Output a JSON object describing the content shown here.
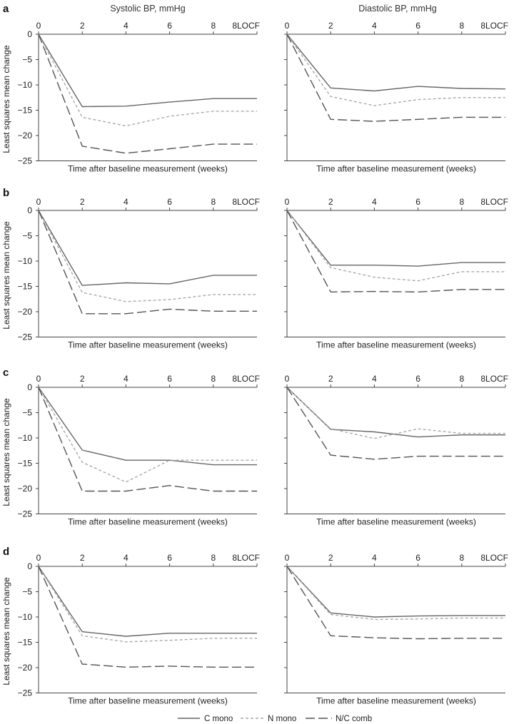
{
  "figure": {
    "col_titles": [
      "Systolic BP, mmHg",
      "Diastolic BP, mmHg"
    ],
    "row_labels": [
      "a",
      "b",
      "c",
      "d"
    ],
    "ylabel": "Least squares mean change",
    "xlabel": "Time after baseline measurement (weeks)",
    "x_tick_labels": [
      "0",
      "2",
      "4",
      "6",
      "8",
      "8LOCF"
    ],
    "y_tick_labels": [
      "0",
      "−5",
      "−10",
      "−15",
      "−20",
      "−25"
    ],
    "legend": [
      {
        "name": "C mono",
        "color": "#666666",
        "dash": "solid"
      },
      {
        "name": "N mono",
        "color": "#aaaaaa",
        "dash": "short"
      },
      {
        "name": "N/C comb",
        "color": "#555555",
        "dash": "long"
      }
    ]
  },
  "chart_data": [
    {
      "type": "line",
      "panel": "a",
      "title": "Systolic BP, mmHg",
      "xlabel": "Time after baseline measurement (weeks)",
      "ylabel": "Least squares mean change",
      "ylim": [
        -25,
        0
      ],
      "categories": [
        "0",
        "2",
        "4",
        "6",
        "8",
        "8LOCF"
      ],
      "series": [
        {
          "name": "C mono",
          "values": [
            0,
            -14.3,
            -14.2,
            -13.4,
            -12.7,
            -12.7
          ]
        },
        {
          "name": "N mono",
          "values": [
            0,
            -16.4,
            -18.1,
            -16.2,
            -15.2,
            -15.2
          ]
        },
        {
          "name": "N/C comb",
          "values": [
            0,
            -22.1,
            -23.5,
            -22.6,
            -21.7,
            -21.7
          ]
        }
      ]
    },
    {
      "type": "line",
      "panel": "a",
      "title": "Diastolic BP, mmHg",
      "xlabel": "Time after baseline measurement (weeks)",
      "ylim": [
        -25,
        0
      ],
      "categories": [
        "0",
        "2",
        "4",
        "6",
        "8",
        "8LOCF"
      ],
      "series": [
        {
          "name": "C mono",
          "values": [
            0,
            -10.6,
            -11.2,
            -10.3,
            -10.7,
            -10.8
          ]
        },
        {
          "name": "N mono",
          "values": [
            0,
            -12.3,
            -14.1,
            -12.9,
            -12.5,
            -12.5
          ]
        },
        {
          "name": "N/C comb",
          "values": [
            0,
            -16.8,
            -17.2,
            -16.8,
            -16.4,
            -16.4
          ]
        }
      ]
    },
    {
      "type": "line",
      "panel": "b",
      "xlabel": "Time after baseline measurement (weeks)",
      "ylabel": "Least squares mean change",
      "ylim": [
        -25,
        0
      ],
      "categories": [
        "0",
        "2",
        "4",
        "6",
        "8",
        "8LOCF"
      ],
      "series": [
        {
          "name": "C mono",
          "values": [
            0,
            -14.8,
            -14.3,
            -14.5,
            -12.8,
            -12.8
          ]
        },
        {
          "name": "N mono",
          "values": [
            0,
            -16.2,
            -18.0,
            -17.6,
            -16.6,
            -16.6
          ]
        },
        {
          "name": "N/C comb",
          "values": [
            0,
            -20.4,
            -20.4,
            -19.5,
            -19.9,
            -19.9
          ]
        }
      ]
    },
    {
      "type": "line",
      "panel": "b",
      "xlabel": "Time after baseline measurement (weeks)",
      "ylim": [
        -25,
        0
      ],
      "categories": [
        "0",
        "2",
        "4",
        "6",
        "8",
        "8LOCF"
      ],
      "series": [
        {
          "name": "C mono",
          "values": [
            0,
            -10.8,
            -10.8,
            -11.0,
            -10.3,
            -10.3
          ]
        },
        {
          "name": "N mono",
          "values": [
            0,
            -11.3,
            -13.2,
            -13.9,
            -12.1,
            -12.1
          ]
        },
        {
          "name": "N/C comb",
          "values": [
            0,
            -16.1,
            -16.0,
            -16.1,
            -15.6,
            -15.6
          ]
        }
      ]
    },
    {
      "type": "line",
      "panel": "c",
      "xlabel": "Time after baseline measurement (weeks)",
      "ylabel": "Least squares mean change",
      "ylim": [
        -25,
        0
      ],
      "categories": [
        "0",
        "2",
        "4",
        "6",
        "8",
        "8LOCF"
      ],
      "series": [
        {
          "name": "C mono",
          "values": [
            0,
            -12.4,
            -14.4,
            -14.4,
            -15.3,
            -15.3
          ]
        },
        {
          "name": "N mono",
          "values": [
            0,
            -14.8,
            -18.7,
            -14.4,
            -14.4,
            -14.4
          ]
        },
        {
          "name": "N/C comb",
          "values": [
            0,
            -20.5,
            -20.5,
            -19.4,
            -20.5,
            -20.5
          ]
        }
      ]
    },
    {
      "type": "line",
      "panel": "c",
      "xlabel": "Time after baseline measurement (weeks)",
      "ylim": [
        -25,
        0
      ],
      "categories": [
        "0",
        "2",
        "4",
        "6",
        "8",
        "8LOCF"
      ],
      "series": [
        {
          "name": "C mono",
          "values": [
            0,
            -8.3,
            -8.8,
            -9.8,
            -9.4,
            -9.4
          ]
        },
        {
          "name": "N mono",
          "values": [
            0,
            -8.2,
            -10.1,
            -8.2,
            -9.1,
            -9.1
          ]
        },
        {
          "name": "N/C comb",
          "values": [
            0,
            -13.4,
            -14.2,
            -13.6,
            -13.6,
            -13.6
          ]
        }
      ]
    },
    {
      "type": "line",
      "panel": "d",
      "xlabel": "Time after baseline measurement (weeks)",
      "ylabel": "Least squares mean change",
      "ylim": [
        -25,
        0
      ],
      "categories": [
        "0",
        "2",
        "4",
        "6",
        "8",
        "8LOCF"
      ],
      "series": [
        {
          "name": "C mono",
          "values": [
            0,
            -12.9,
            -13.8,
            -13.2,
            -13.2,
            -13.2
          ]
        },
        {
          "name": "N mono",
          "values": [
            0,
            -13.7,
            -14.9,
            -14.6,
            -14.2,
            -14.2
          ]
        },
        {
          "name": "N/C comb",
          "values": [
            0,
            -19.3,
            -19.9,
            -19.7,
            -19.9,
            -19.9
          ]
        }
      ]
    },
    {
      "type": "line",
      "panel": "d",
      "xlabel": "Time after baseline measurement (weeks)",
      "ylim": [
        -25,
        0
      ],
      "categories": [
        "0",
        "2",
        "4",
        "6",
        "8",
        "8LOCF"
      ],
      "series": [
        {
          "name": "C mono",
          "values": [
            0,
            -9.2,
            -10.0,
            -9.8,
            -9.7,
            -9.7
          ]
        },
        {
          "name": "N mono",
          "values": [
            0,
            -9.5,
            -10.5,
            -10.4,
            -10.2,
            -10.2
          ]
        },
        {
          "name": "N/C comb",
          "values": [
            0,
            -13.7,
            -14.1,
            -14.3,
            -14.2,
            -14.2
          ]
        }
      ]
    }
  ]
}
